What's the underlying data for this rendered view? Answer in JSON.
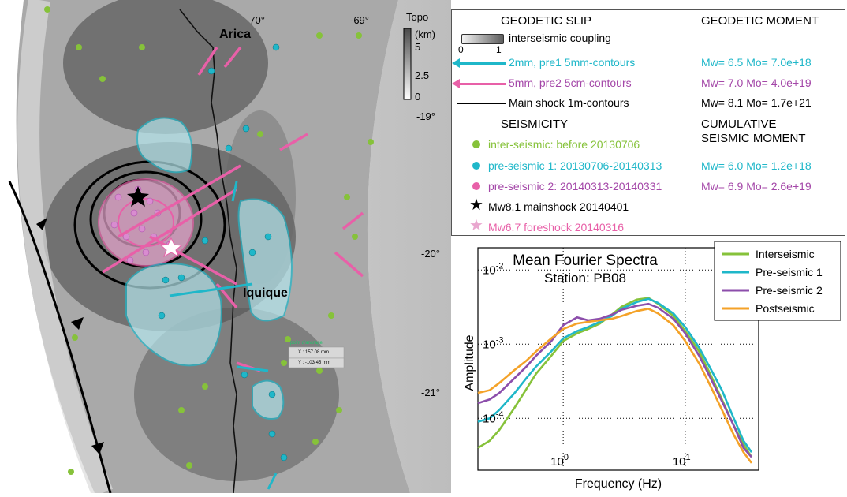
{
  "map": {
    "cities": [
      "Arica",
      "Iquique"
    ],
    "lon_labels": [
      "-70°",
      "-69°"
    ],
    "lat_labels": [
      "-19°",
      "-20°",
      "-21°"
    ],
    "topo_title": "Topo",
    "topo_unit": "(km)",
    "topo_ticks": [
      "5",
      "2.5",
      "0"
    ],
    "measure_box": {
      "title": "point d'ancrage",
      "x": "X : 157.08 mm",
      "y": "Y : -103.45 mm"
    }
  },
  "legend": {
    "slip_title": "GEODETIC SLIP",
    "moment_title": "GEODETIC MOMENT",
    "coupling_label": "interseismic coupling",
    "coupling_ticks": [
      "0",
      "1"
    ],
    "slip_rows": [
      {
        "label": "2mm, pre1  5mm-contours",
        "moment": "Mw= 6.5   Mo= 7.0e+18",
        "color": "#1fb7c9"
      },
      {
        "label": "5mm, pre2  5cm-contours",
        "moment": "Mw= 7.0   Mo= 4.0e+19",
        "color": "#e860a8"
      },
      {
        "label": "Main shock 1m-contours",
        "moment": "Mw= 8.1   Mo= 1.7e+21",
        "color": "#000000"
      }
    ],
    "seis_title": "SEISMICITY",
    "cum_title_1": "CUMULATIVE",
    "cum_title_2": "SEISMIC MOMENT",
    "seis_rows": [
      {
        "label": "inter-seismic: before  20130706",
        "moment": "",
        "color": "#86c23a"
      },
      {
        "label": "pre-seismic 1: 20130706-20140313",
        "moment": "Mw= 6.0   Mo= 1.2e+18",
        "color": "#1fb7c9"
      },
      {
        "label": "pre-seismic 2: 20140313-20140331",
        "moment": "Mw= 6.9   Mo= 2.6e+19",
        "color": "#e860a8"
      }
    ],
    "mainshock_label": "Mw8.1 mainshock 20140401",
    "foreshock_label": "Mw6.7 foreshock 20140316"
  },
  "chart_data": {
    "type": "line",
    "title": "Mean Fourier Spectra",
    "subtitle": "Station: PB08",
    "xlabel": "Frequency (Hz)",
    "ylabel": "Amplitude",
    "xscale": "log",
    "yscale": "log",
    "xlim": [
      0.2,
      40
    ],
    "ylim": [
      2e-05,
      0.02
    ],
    "xticks": [
      "10^0",
      "10^1"
    ],
    "yticks": [
      "10^-2",
      "10^-3",
      "10^-4"
    ],
    "grid": true,
    "legend_position": "top-right",
    "series": [
      {
        "name": "Interseismic",
        "color": "#86c23a",
        "x": [
          0.2,
          0.25,
          0.3,
          0.4,
          0.5,
          0.6,
          0.8,
          1.0,
          1.3,
          1.6,
          2.0,
          2.5,
          3.0,
          4.0,
          5.0,
          6.0,
          8.0,
          10,
          13,
          16,
          20,
          25,
          30,
          35
        ],
        "y": [
          4e-05,
          5e-05,
          7e-05,
          0.00014,
          0.00025,
          0.0004,
          0.0007,
          0.0011,
          0.0014,
          0.0016,
          0.0019,
          0.0025,
          0.0032,
          0.004,
          0.0042,
          0.0035,
          0.0024,
          0.0015,
          0.0008,
          0.0004,
          0.00018,
          8e-05,
          4.5e-05,
          3e-05
        ]
      },
      {
        "name": "Pre-seismic 1",
        "color": "#1fb7c9",
        "x": [
          0.2,
          0.25,
          0.3,
          0.4,
          0.5,
          0.6,
          0.8,
          1.0,
          1.3,
          1.6,
          2.0,
          2.5,
          3.0,
          4.0,
          5.0,
          6.0,
          8.0,
          10,
          13,
          16,
          20,
          25,
          30,
          35
        ],
        "y": [
          9e-05,
          0.0001,
          0.00013,
          0.00022,
          0.00035,
          0.0005,
          0.0008,
          0.0012,
          0.0015,
          0.0017,
          0.002,
          0.0024,
          0.003,
          0.0037,
          0.0041,
          0.0036,
          0.0026,
          0.0017,
          0.0009,
          0.00048,
          0.00024,
          0.0001,
          5e-05,
          3.5e-05
        ]
      },
      {
        "name": "Pre-seismic 2",
        "color": "#8c4eab",
        "x": [
          0.2,
          0.25,
          0.3,
          0.4,
          0.5,
          0.6,
          0.8,
          1.0,
          1.3,
          1.6,
          2.0,
          2.5,
          3.0,
          4.0,
          5.0,
          6.0,
          8.0,
          10,
          13,
          16,
          20,
          25,
          30,
          35
        ],
        "y": [
          0.00016,
          0.00018,
          0.00022,
          0.00035,
          0.0005,
          0.0007,
          0.0011,
          0.0018,
          0.0023,
          0.0021,
          0.0022,
          0.0025,
          0.0029,
          0.0033,
          0.0035,
          0.0031,
          0.0022,
          0.0014,
          0.0007,
          0.00036,
          0.00017,
          8e-05,
          4e-05,
          3e-05
        ]
      },
      {
        "name": "Postseismic",
        "color": "#f4a228",
        "x": [
          0.2,
          0.25,
          0.3,
          0.4,
          0.5,
          0.6,
          0.8,
          1.0,
          1.3,
          1.6,
          2.0,
          2.5,
          3.0,
          4.0,
          5.0,
          6.0,
          8.0,
          10,
          13,
          16,
          20,
          25,
          30,
          35
        ],
        "y": [
          0.00022,
          0.00024,
          0.0003,
          0.00045,
          0.0006,
          0.0008,
          0.0012,
          0.0016,
          0.0019,
          0.002,
          0.0021,
          0.0022,
          0.0024,
          0.0028,
          0.003,
          0.0026,
          0.0018,
          0.0011,
          0.00055,
          0.00028,
          0.00013,
          6e-05,
          3.5e-05,
          2.5e-05
        ]
      }
    ]
  }
}
